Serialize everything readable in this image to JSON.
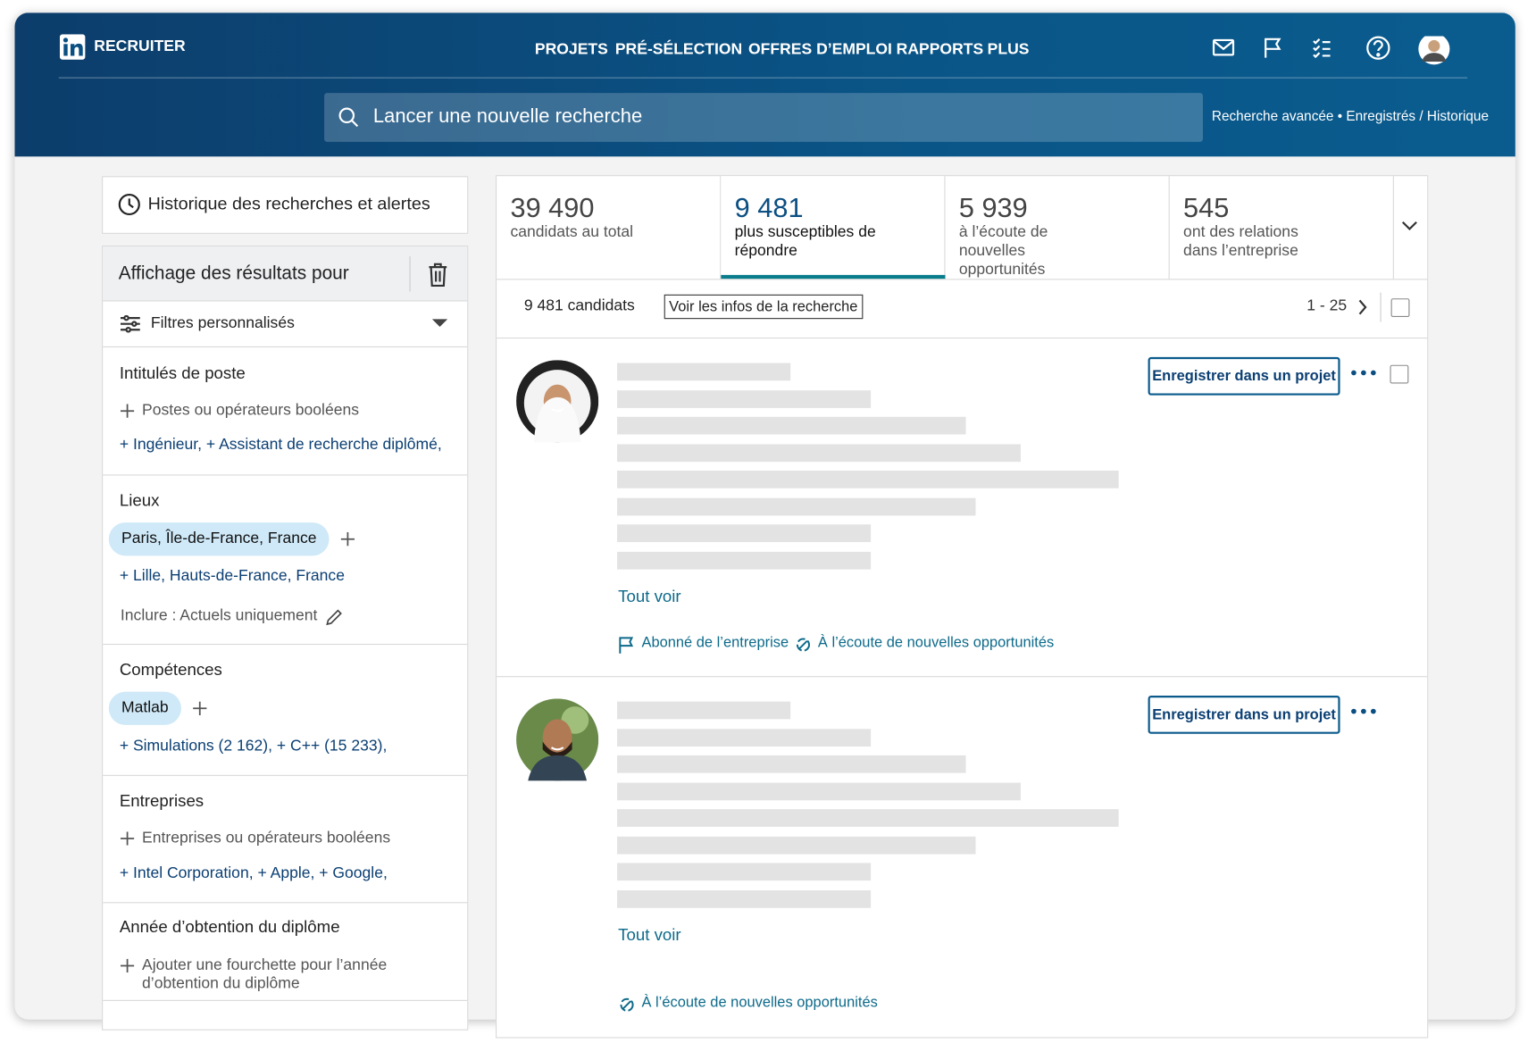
{
  "header": {
    "brand": "RECRUITER",
    "nav": [
      "PROJETS",
      "PRÉ-SÉLECTION",
      "OFFRES D’EMPLOI",
      "RAPPORTS",
      "PLUS"
    ],
    "search_placeholder": "Lancer une nouvelle recherche",
    "links": [
      "Recherche avancée",
      "Enregistrés / Historique"
    ],
    "links_separator": "•"
  },
  "sidebar": {
    "history": "Historique des recherches et alertes",
    "results_for": "Affichage des résultats pour",
    "custom_filters": "Filtres personnalisés",
    "sections": [
      {
        "title": "Intitulés de poste",
        "add": "Postes ou opérateurs booléens",
        "items": "+ Ingénieur, + Assistant de recherche diplômé,"
      },
      {
        "title": "Lieux",
        "chip": "Paris, Île-de-France, France",
        "items": "+ Lille, Hauts-de-France, France",
        "note": "Inclure : Actuels uniquement"
      },
      {
        "title": "Compétences",
        "chip": "Matlab",
        "items": "+ Simulations (2 162), + C++ (15 233),"
      },
      {
        "title": "Entreprises",
        "add": "Entreprises ou opérateurs booléens",
        "items": "+ Intel Corporation, + Apple, + Google,"
      },
      {
        "title": "Année d’obtention du diplôme",
        "add": "Ajouter une fourchette pour l’année d’obtention du diplôme"
      }
    ]
  },
  "stats": [
    {
      "number": "39 490",
      "label": "candidats au total"
    },
    {
      "number": "9 481",
      "label": "plus susceptibles de répondre"
    },
    {
      "number": "5 939",
      "label": "à l’écoute de nouvelles opportunités"
    },
    {
      "number": "545",
      "label": "ont des relations dans l’entreprise"
    }
  ],
  "results_bar": {
    "count": "9 481 candidats",
    "search_info": "Voir les infos de la recherche",
    "range": "1 - 25"
  },
  "candidates": [
    {
      "save": "Enregistrer dans un projet",
      "see_all": "Tout voir",
      "tags": [
        "Abonné de l’entreprise",
        "À l’écoute de nouvelles opportunités"
      ]
    },
    {
      "save": "Enregistrer dans un projet",
      "see_all": "Tout voir",
      "tags": [
        "À l’écoute de nouvelles opportunités"
      ]
    }
  ]
}
